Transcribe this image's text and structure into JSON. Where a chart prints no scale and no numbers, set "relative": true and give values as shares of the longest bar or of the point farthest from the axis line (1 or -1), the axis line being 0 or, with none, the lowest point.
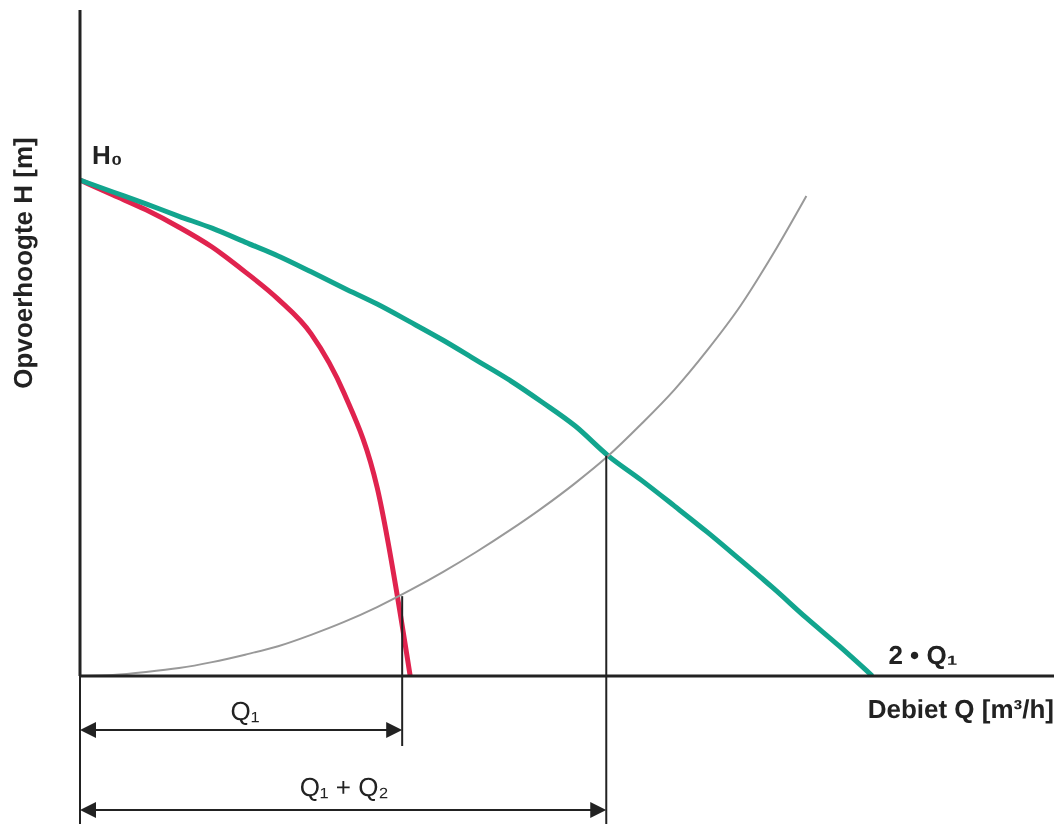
{
  "chart_data": {
    "type": "line",
    "relative": true,
    "xlabel": "Debiet Q  [m³/h]",
    "ylabel": "Opvoerhoogte H [m]",
    "annotations": [
      "H₀",
      "Q₁",
      "Q₁ + Q₂"
    ],
    "grid": false,
    "marker": "none",
    "line_style": "solid",
    "categories": [
      null,
      null,
      null,
      null,
      null,
      null,
      null,
      null,
      null,
      null,
      null,
      null,
      null,
      null,
      null,
      null,
      null,
      null,
      null,
      null,
      null,
      null,
      null,
      null,
      null,
      null,
      null,
      null,
      null,
      null
    ],
    "series": [
      {
        "color": "#e0234e",
        "values": [
          1.0,
          0.97,
          0.94,
          0.905,
          0.865,
          0.815,
          0.76,
          0.69,
          0.57,
          0.38,
          0,
          null,
          null,
          null,
          null,
          null,
          null,
          null,
          null,
          null,
          null,
          null,
          null,
          null,
          null,
          null,
          null,
          null,
          null,
          null
        ]
      },
      {
        "name": "2 • Q₁",
        "color": "#12a58e",
        "values": [
          1.0,
          0.976,
          0.952,
          0.927,
          0.903,
          0.875,
          0.847,
          0.815,
          0.782,
          0.75,
          0.714,
          0.677,
          0.637,
          0.597,
          0.552,
          0.504,
          0.444,
          0.395,
          0.343,
          0.29,
          0.234,
          0.177,
          0.117,
          0.06,
          0,
          null,
          null,
          null,
          null,
          null
        ]
      },
      {
        "color": "#999999",
        "values": [
          0,
          0.002,
          0.008,
          0.016,
          0.028,
          0.043,
          0.06,
          0.083,
          0.109,
          0.139,
          0.173,
          0.21,
          0.25,
          0.293,
          0.339,
          0.389,
          0.444,
          0.508,
          0.577,
          0.657,
          0.746,
          0.852,
          0.968,
          null,
          null,
          null,
          null,
          null,
          null,
          null
        ]
      }
    ]
  }
}
